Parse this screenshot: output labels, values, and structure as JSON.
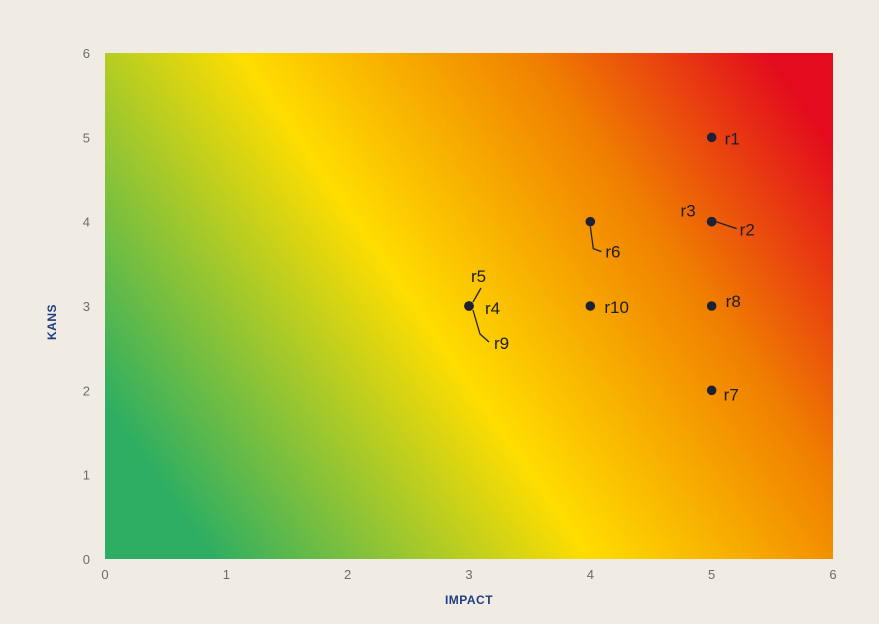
{
  "chart_data": {
    "type": "scatter",
    "title": "",
    "xlabel": "IMPACT",
    "ylabel": "KANS",
    "xlim": [
      0,
      6
    ],
    "ylim": [
      0,
      6
    ],
    "x_ticks": [
      "0",
      "1",
      "2",
      "3",
      "4",
      "5",
      "6"
    ],
    "y_ticks": [
      "0",
      "1",
      "2",
      "3",
      "4",
      "5",
      "6"
    ],
    "grid": false,
    "background_gradient": [
      "#2eae62",
      "#ffdd00",
      "#e30b1d"
    ],
    "point_color": "#1e2133",
    "points": [
      {
        "label": "r1",
        "x": 5,
        "y": 5
      },
      {
        "label": "r2",
        "x": 5,
        "y": 4
      },
      {
        "label": "r3",
        "x": 5,
        "y": 4
      },
      {
        "label": "r4",
        "x": 3,
        "y": 3
      },
      {
        "label": "r5",
        "x": 3,
        "y": 3
      },
      {
        "label": "r6",
        "x": 4,
        "y": 4
      },
      {
        "label": "r7",
        "x": 5,
        "y": 2
      },
      {
        "label": "r8",
        "x": 5,
        "y": 3
      },
      {
        "label": "r9",
        "x": 3,
        "y": 3
      },
      {
        "label": "r10",
        "x": 4,
        "y": 3
      }
    ]
  }
}
